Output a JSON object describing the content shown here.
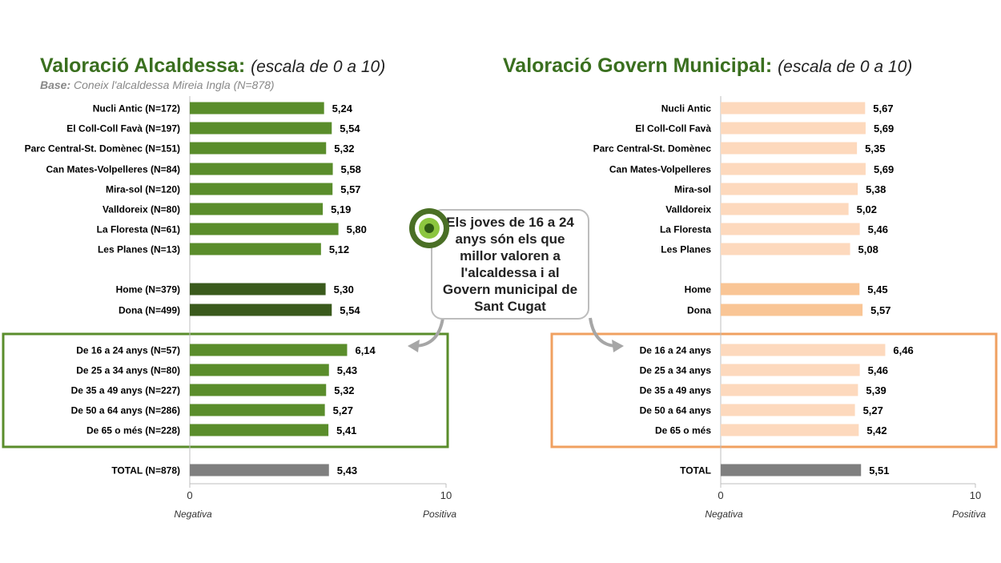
{
  "left_title": {
    "main": "Valoració Alcaldessa:",
    "sub": "(escala de 0 a 10)"
  },
  "left_base": {
    "label": "Base:",
    "text": "Coneix l'alcaldessa Mireia Ingla (N=878)"
  },
  "right_title": {
    "main": "Valoració Govern Municipal:",
    "sub": "(escala de 0 a 10)"
  },
  "callout": {
    "text": "Els joves de 16 a 24 anys són els que millor valoren a l'alcaldessa i al Govern municipal de Sant Cugat"
  },
  "colors": {
    "left_bar": "#5a8d2b",
    "left_gender_bar": "#3a5a1c",
    "right_bar": "#fdd9bd",
    "right_gender_bar": "#f9c595",
    "total_bar": "#7f7f7f",
    "left_highlight_border": "#5a8d2b",
    "right_highlight_border": "#f0a060"
  },
  "chart_data": [
    {
      "type": "bar",
      "orientation": "horizontal",
      "xlim": [
        0,
        10
      ],
      "x_ticks": [
        "0",
        "10"
      ],
      "x_end_labels": [
        "Negativa",
        "Positiva"
      ],
      "groups": [
        {
          "kind": "area",
          "categories": [
            "Nucli Antic (N=172)",
            "El Coll-Coll Favà (N=197)",
            "Parc Central-St. Domènec (N=151)",
            "Can Mates-Volpelleres (N=84)",
            "Mira-sol (N=120)",
            "Valldoreix (N=80)",
            "La Floresta (N=61)",
            "Les Planes (N=13)"
          ],
          "values": [
            5.24,
            5.54,
            5.32,
            5.58,
            5.57,
            5.19,
            5.8,
            5.12
          ],
          "labels": [
            "5,24",
            "5,54",
            "5,32",
            "5,58",
            "5,57",
            "5,19",
            "5,80",
            "5,12"
          ]
        },
        {
          "kind": "gender",
          "categories": [
            "Home (N=379)",
            "Dona (N=499)"
          ],
          "values": [
            5.3,
            5.54
          ],
          "labels": [
            "5,30",
            "5,54"
          ]
        },
        {
          "kind": "age",
          "categories": [
            "De 16 a 24 anys (N=57)",
            "De 25 a 34 anys (N=80)",
            "De 35 a 49 anys (N=227)",
            "De 50 a 64 anys (N=286)",
            "De 65 o més (N=228)"
          ],
          "values": [
            6.14,
            5.43,
            5.32,
            5.27,
            5.41
          ],
          "labels": [
            "6,14",
            "5,43",
            "5,32",
            "5,27",
            "5,41"
          ]
        },
        {
          "kind": "total",
          "categories": [
            "TOTAL (N=878)"
          ],
          "values": [
            5.43
          ],
          "labels": [
            "5,43"
          ]
        }
      ]
    },
    {
      "type": "bar",
      "orientation": "horizontal",
      "xlim": [
        0,
        10
      ],
      "x_ticks": [
        "0",
        "10"
      ],
      "x_end_labels": [
        "Negativa",
        "Positiva"
      ],
      "groups": [
        {
          "kind": "area",
          "categories": [
            "Nucli Antic",
            "El Coll-Coll Favà",
            "Parc Central-St. Domènec",
            "Can Mates-Volpelleres",
            "Mira-sol",
            "Valldoreix",
            "La Floresta",
            "Les Planes"
          ],
          "values": [
            5.67,
            5.69,
            5.35,
            5.69,
            5.38,
            5.02,
            5.46,
            5.08
          ],
          "labels": [
            "5,67",
            "5,69",
            "5,35",
            "5,69",
            "5,38",
            "5,02",
            "5,46",
            "5,08"
          ]
        },
        {
          "kind": "gender",
          "categories": [
            "Home",
            "Dona"
          ],
          "values": [
            5.45,
            5.57
          ],
          "labels": [
            "5,45",
            "5,57"
          ]
        },
        {
          "kind": "age",
          "categories": [
            "De 16 a 24 anys",
            "De 25 a 34 anys",
            "De 35 a 49 anys",
            "De 50 a 64 anys",
            "De 65 o més"
          ],
          "values": [
            6.46,
            5.46,
            5.39,
            5.27,
            5.42
          ],
          "labels": [
            "6,46",
            "5,46",
            "5,39",
            "5,27",
            "5,42"
          ]
        },
        {
          "kind": "total",
          "categories": [
            "TOTAL"
          ],
          "values": [
            5.51
          ],
          "labels": [
            "5,51"
          ]
        }
      ]
    }
  ]
}
